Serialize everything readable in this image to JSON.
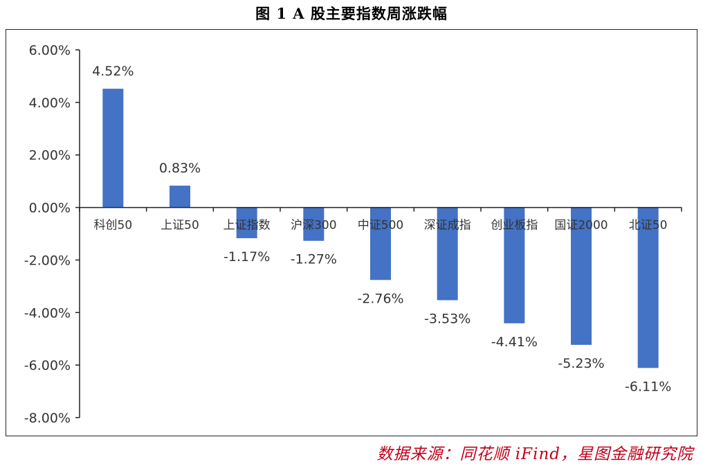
{
  "title": "图 1 A 股主要指数周涨跌幅",
  "source": "数据来源：同花顺 iFind，星图金融研究院",
  "colors": {
    "bar": "#4472c4",
    "axis": "#222222",
    "text": "#333333"
  },
  "chart_data": {
    "type": "bar",
    "categories": [
      "科创50",
      "上证50",
      "上证指数",
      "沪深300",
      "中证500",
      "深证成指",
      "创业板指",
      "国证2000",
      "北证50"
    ],
    "values": [
      4.52,
      0.83,
      -1.17,
      -1.27,
      -2.76,
      -3.53,
      -4.41,
      -5.23,
      -6.11
    ],
    "data_labels": [
      "4.52%",
      "0.83%",
      "-1.17%",
      "-1.27%",
      "-2.76%",
      "-3.53%",
      "-4.41%",
      "-5.23%",
      "-6.11%"
    ],
    "ylim": [
      -8,
      6
    ],
    "yticks": [
      6,
      4,
      2,
      0,
      -2,
      -4,
      -6,
      -8
    ],
    "ytick_labels": [
      "6.00%",
      "4.00%",
      "2.00%",
      "0.00%",
      "-2.00%",
      "-4.00%",
      "-6.00%",
      "-8.00%"
    ],
    "grid": false,
    "legend": "none"
  }
}
